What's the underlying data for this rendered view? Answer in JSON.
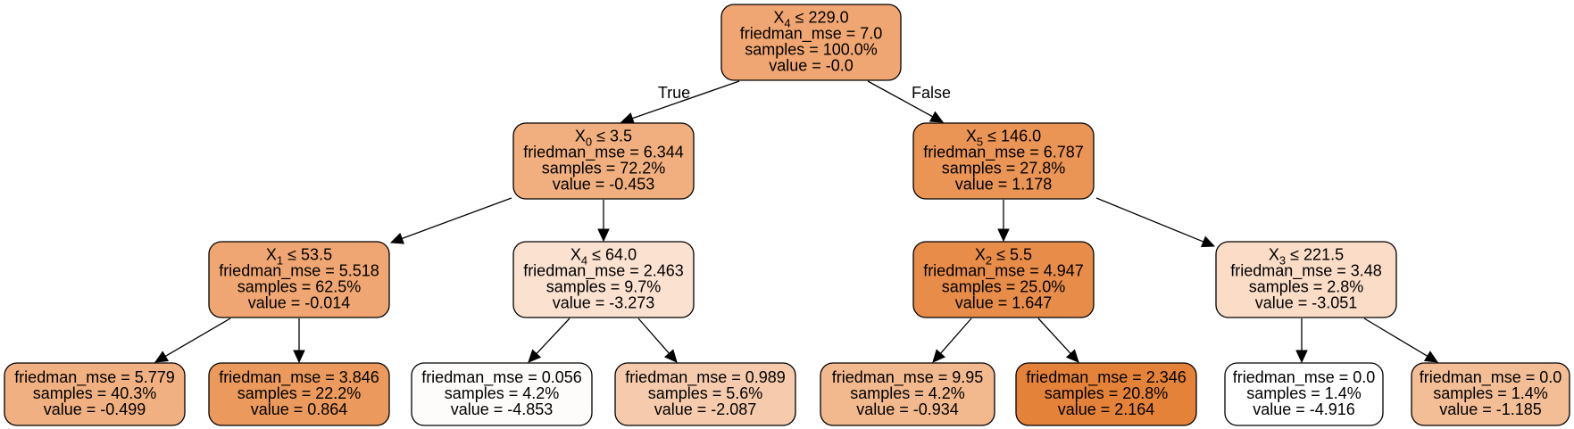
{
  "tree": {
    "nodes": [
      {
        "id": "n0",
        "split": {
          "feature": "X",
          "index": "4",
          "op": " ≤ ",
          "threshold": "229.0"
        },
        "lines": [
          "friedman_mse = 7.0",
          "samples = 100.0%",
          "value = -0.0"
        ],
        "fill": "#f0a672"
      },
      {
        "id": "n1",
        "split": {
          "feature": "X",
          "index": "0",
          "op": " ≤ ",
          "threshold": "3.5"
        },
        "lines": [
          "friedman_mse = 6.344",
          "samples = 72.2%",
          "value = -0.453"
        ],
        "fill": "#f1af7f"
      },
      {
        "id": "n2",
        "split": {
          "feature": "X",
          "index": "1",
          "op": " ≤ ",
          "threshold": "53.5"
        },
        "lines": [
          "friedman_mse = 5.518",
          "samples = 62.5%",
          "value = -0.014"
        ],
        "fill": "#f0a672"
      },
      {
        "id": "n3",
        "split": null,
        "lines": [
          "friedman_mse = 5.779",
          "samples = 40.3%",
          "value = -0.499"
        ],
        "fill": "#f1b081"
      },
      {
        "id": "n4",
        "split": null,
        "lines": [
          "friedman_mse = 3.846",
          "samples = 22.2%",
          "value = 0.864"
        ],
        "fill": "#eb995c"
      },
      {
        "id": "n5",
        "split": {
          "feature": "X",
          "index": "4",
          "op": " ≤ ",
          "threshold": "64.0"
        },
        "lines": [
          "friedman_mse = 2.463",
          "samples = 9.7%",
          "value = -3.273"
        ],
        "fill": "#fbe1d0"
      },
      {
        "id": "n6",
        "split": null,
        "lines": [
          "friedman_mse = 0.056",
          "samples = 4.2%",
          "value = -4.853"
        ],
        "fill": "#fefcfb"
      },
      {
        "id": "n7",
        "split": null,
        "lines": [
          "friedman_mse = 0.989",
          "samples = 5.6%",
          "value = -2.087"
        ],
        "fill": "#f6cbad"
      },
      {
        "id": "n8",
        "split": {
          "feature": "X",
          "index": "5",
          "op": " ≤ ",
          "threshold": "146.0"
        },
        "lines": [
          "friedman_mse = 6.787",
          "samples = 27.8%",
          "value = 1.178"
        ],
        "fill": "#ea9456"
      },
      {
        "id": "n9",
        "split": {
          "feature": "X",
          "index": "2",
          "op": " ≤ ",
          "threshold": "5.5"
        },
        "lines": [
          "friedman_mse = 4.947",
          "samples = 25.0%",
          "value = 1.647"
        ],
        "fill": "#e88c4a"
      },
      {
        "id": "n10",
        "split": null,
        "lines": [
          "friedman_mse = 9.95",
          "samples = 4.2%",
          "value = -0.934"
        ],
        "fill": "#f2b88e"
      },
      {
        "id": "n11",
        "split": null,
        "lines": [
          "friedman_mse = 2.346",
          "samples = 20.8%",
          "value = 2.164"
        ],
        "fill": "#e5823a"
      },
      {
        "id": "n12",
        "split": {
          "feature": "X",
          "index": "3",
          "op": " ≤ ",
          "threshold": "221.5"
        },
        "lines": [
          "friedman_mse = 3.48",
          "samples = 2.8%",
          "value = -3.051"
        ],
        "fill": "#fadcc7"
      },
      {
        "id": "n13",
        "split": null,
        "lines": [
          "friedman_mse = 0.0",
          "samples = 1.4%",
          "value = -4.916"
        ],
        "fill": "#ffffff"
      },
      {
        "id": "n14",
        "split": null,
        "lines": [
          "friedman_mse = 0.0",
          "samples = 1.4%",
          "value = -1.185"
        ],
        "fill": "#f3bd96"
      }
    ],
    "edges": [
      {
        "from": "n0",
        "to": "n1",
        "label": "True"
      },
      {
        "from": "n0",
        "to": "n8",
        "label": "False"
      },
      {
        "from": "n1",
        "to": "n2",
        "label": ""
      },
      {
        "from": "n1",
        "to": "n5",
        "label": ""
      },
      {
        "from": "n2",
        "to": "n3",
        "label": ""
      },
      {
        "from": "n2",
        "to": "n4",
        "label": ""
      },
      {
        "from": "n5",
        "to": "n6",
        "label": ""
      },
      {
        "from": "n5",
        "to": "n7",
        "label": ""
      },
      {
        "from": "n8",
        "to": "n9",
        "label": ""
      },
      {
        "from": "n8",
        "to": "n12",
        "label": ""
      },
      {
        "from": "n9",
        "to": "n10",
        "label": ""
      },
      {
        "from": "n9",
        "to": "n11",
        "label": ""
      },
      {
        "from": "n12",
        "to": "n13",
        "label": ""
      },
      {
        "from": "n12",
        "to": "n14",
        "label": ""
      }
    ]
  }
}
